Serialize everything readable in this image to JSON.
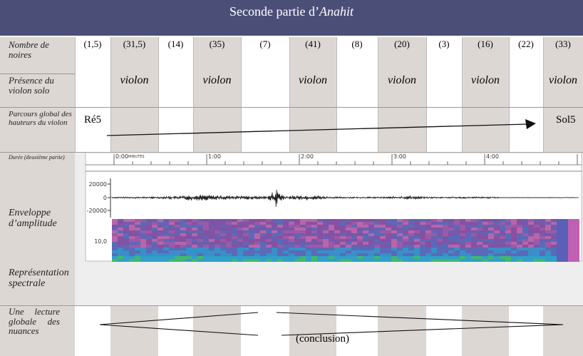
{
  "title": {
    "text": "Seconde partie d’",
    "work": "Anahit"
  },
  "row_labels": [
    "Nombre de noires",
    "Présence du violon solo",
    "Parcours global des hauteurs du violon",
    "Durée (deuxième partie)",
    "Enveloppe d’amplitude",
    "Représentation spectrale",
    "Une lecture globale des nuances"
  ],
  "columns": [
    {
      "count": "(1,5)"
    },
    {
      "count": "(31,5)",
      "solo": "violon"
    },
    {
      "count": "(14)"
    },
    {
      "count": "(35)",
      "solo": "violon"
    },
    {
      "count": "(7)"
    },
    {
      "count": "(41)",
      "solo": "violon"
    },
    {
      "count": "(8)"
    },
    {
      "count": "(20)",
      "solo": "violon"
    },
    {
      "count": "(3)"
    },
    {
      "count": "(16)",
      "solo": "violon"
    },
    {
      "count": "(22)"
    },
    {
      "count": "(33)",
      "solo": "violon"
    }
  ],
  "pitch": {
    "start": "Ré5",
    "end": "Sol5"
  },
  "time_axis": {
    "unit": "MINUTES",
    "labels": [
      "0:00",
      "1:00",
      "2:00",
      "3:00",
      "4:00"
    ]
  },
  "amplitude_axis": [
    "20000",
    "0",
    "-20000"
  ],
  "spectral_axis": "10,0",
  "nuance_note": "(conclusion)"
}
